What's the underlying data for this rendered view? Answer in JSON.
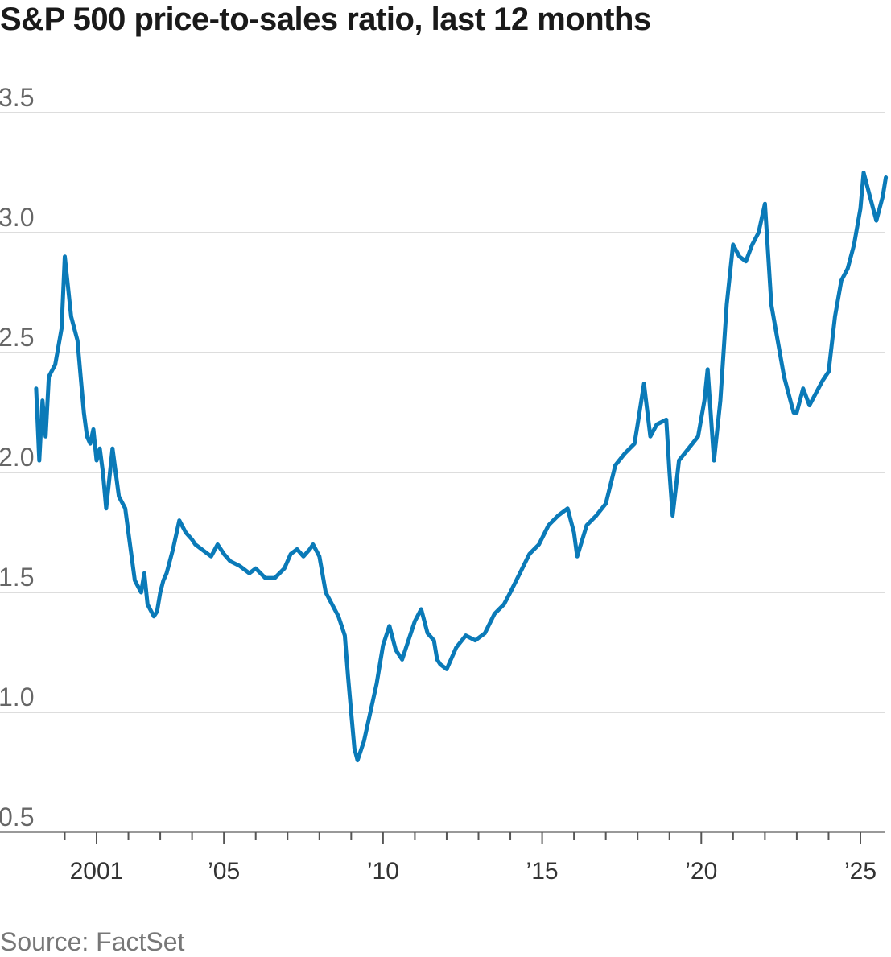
{
  "chart_data": {
    "type": "line",
    "title": "S&P 500 price-to-sales ratio, last 12 months",
    "source": "Source: FactSet",
    "xlabel": "",
    "ylabel": "",
    "ylim": [
      0.5,
      3.5
    ],
    "xlim": [
      1999.0,
      2025.9
    ],
    "grid": true,
    "line_color": "#0a7ab8",
    "y_ticks": [
      {
        "value": 0.5,
        "label": "0.5"
      },
      {
        "value": 1.0,
        "label": "1.0"
      },
      {
        "value": 1.5,
        "label": "1.5"
      },
      {
        "value": 2.0,
        "label": "2.0"
      },
      {
        "value": 2.5,
        "label": "2.5"
      },
      {
        "value": 3.0,
        "label": "3.0"
      },
      {
        "value": 3.5,
        "label": "3.5"
      }
    ],
    "x_ticks": [
      {
        "value": 2001,
        "label": "2001"
      },
      {
        "value": 2005,
        "label": "’05"
      },
      {
        "value": 2010,
        "label": "’10"
      },
      {
        "value": 2015,
        "label": "’15"
      },
      {
        "value": 2020,
        "label": "’20"
      },
      {
        "value": 2025,
        "label": "’25"
      }
    ],
    "x_minor_ticks": [
      2000,
      2001,
      2002,
      2003,
      2004,
      2005,
      2006,
      2007,
      2008,
      2009,
      2010,
      2011,
      2012,
      2013,
      2014,
      2015,
      2016,
      2017,
      2018,
      2019,
      2020,
      2021,
      2022,
      2023,
      2024,
      2025
    ],
    "series": [
      {
        "x": [
          1999.1,
          1999.2,
          1999.3,
          1999.4,
          1999.5,
          1999.7,
          1999.9,
          2000.0,
          2000.2,
          2000.4,
          2000.5,
          2000.6,
          2000.7,
          2000.8,
          2000.9,
          2001.0,
          2001.1,
          2001.2,
          2001.3,
          2001.5,
          2001.7,
          2001.9,
          2002.0,
          2002.2,
          2002.4,
          2002.5,
          2002.6,
          2002.8,
          2002.9,
          2003.0,
          2003.1,
          2003.2,
          2003.4,
          2003.6,
          2003.8,
          2004.0,
          2004.1,
          2004.3,
          2004.6,
          2004.8,
          2005.0,
          2005.2,
          2005.5,
          2005.8,
          2006.0,
          2006.3,
          2006.6,
          2006.9,
          2007.1,
          2007.3,
          2007.5,
          2007.7,
          2007.8,
          2008.0,
          2008.2,
          2008.4,
          2008.6,
          2008.8,
          2008.9,
          2009.0,
          2009.1,
          2009.2,
          2009.4,
          2009.6,
          2009.8,
          2010.0,
          2010.2,
          2010.4,
          2010.6,
          2010.8,
          2011.0,
          2011.2,
          2011.4,
          2011.6,
          2011.7,
          2011.8,
          2012.0,
          2012.3,
          2012.6,
          2012.9,
          2013.2,
          2013.5,
          2013.8,
          2014.0,
          2014.3,
          2014.6,
          2014.9,
          2015.2,
          2015.5,
          2015.8,
          2016.0,
          2016.1,
          2016.4,
          2016.7,
          2017.0,
          2017.3,
          2017.6,
          2017.9,
          2018.0,
          2018.2,
          2018.4,
          2018.6,
          2018.9,
          2019.0,
          2019.1,
          2019.3,
          2019.6,
          2019.9,
          2020.1,
          2020.2,
          2020.4,
          2020.6,
          2020.8,
          2021.0,
          2021.2,
          2021.4,
          2021.6,
          2021.8,
          2022.0,
          2022.2,
          2022.4,
          2022.6,
          2022.8,
          2022.9,
          2023.0,
          2023.2,
          2023.4,
          2023.6,
          2023.8,
          2024.0,
          2024.2,
          2024.4,
          2024.6,
          2024.8,
          2025.0,
          2025.1,
          2025.3,
          2025.5,
          2025.7,
          2025.8
        ],
        "y": [
          2.35,
          2.05,
          2.3,
          2.15,
          2.4,
          2.45,
          2.6,
          2.9,
          2.65,
          2.55,
          2.4,
          2.25,
          2.15,
          2.12,
          2.18,
          2.05,
          2.1,
          2.0,
          1.85,
          2.1,
          1.9,
          1.85,
          1.75,
          1.55,
          1.5,
          1.58,
          1.45,
          1.4,
          1.42,
          1.5,
          1.55,
          1.58,
          1.68,
          1.8,
          1.75,
          1.72,
          1.7,
          1.68,
          1.65,
          1.7,
          1.66,
          1.63,
          1.61,
          1.58,
          1.6,
          1.56,
          1.56,
          1.6,
          1.66,
          1.68,
          1.65,
          1.68,
          1.7,
          1.65,
          1.5,
          1.45,
          1.4,
          1.32,
          1.15,
          1.0,
          0.85,
          0.8,
          0.88,
          1.0,
          1.12,
          1.28,
          1.36,
          1.26,
          1.22,
          1.3,
          1.38,
          1.43,
          1.33,
          1.3,
          1.22,
          1.2,
          1.18,
          1.27,
          1.32,
          1.3,
          1.33,
          1.41,
          1.45,
          1.5,
          1.58,
          1.66,
          1.7,
          1.78,
          1.82,
          1.85,
          1.75,
          1.65,
          1.78,
          1.82,
          1.87,
          2.03,
          2.08,
          2.12,
          2.2,
          2.37,
          2.15,
          2.2,
          2.22,
          2.0,
          1.82,
          2.05,
          2.1,
          2.15,
          2.3,
          2.43,
          2.05,
          2.3,
          2.7,
          2.95,
          2.9,
          2.88,
          2.95,
          3.0,
          3.12,
          2.7,
          2.55,
          2.4,
          2.3,
          2.25,
          2.25,
          2.35,
          2.28,
          2.33,
          2.38,
          2.42,
          2.65,
          2.8,
          2.85,
          2.95,
          3.1,
          3.25,
          3.15,
          3.05,
          3.15,
          3.23
        ]
      }
    ]
  },
  "source": "Source: FactSet"
}
